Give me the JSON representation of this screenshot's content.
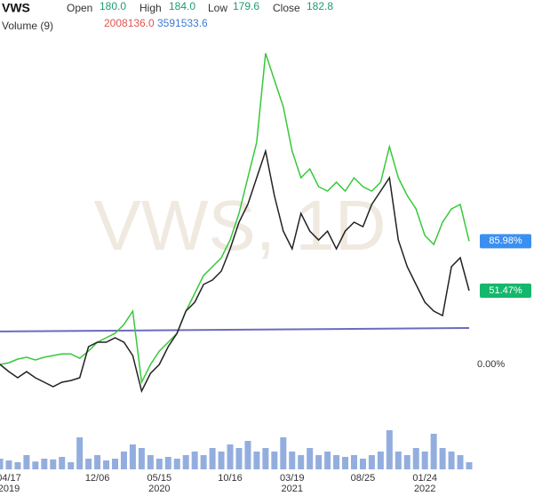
{
  "header": {
    "symbol": "VWS",
    "open_label": "Open",
    "open": "180.0",
    "high_label": "High",
    "high": "184.0",
    "low_label": "Low",
    "low": "179.6",
    "close_label": "Close",
    "close": "182.8",
    "volume_label": "Volume (9)",
    "volume": "2008136.0",
    "volume_ma": "3591533.6"
  },
  "chart_data": {
    "type": "line",
    "watermark": "VWS, 1D",
    "categories": [
      null,
      "04/17",
      null,
      null,
      null,
      null,
      null,
      null,
      null,
      null,
      null,
      "12/06",
      null,
      null,
      null,
      null,
      null,
      null,
      "05/15",
      null,
      null,
      null,
      null,
      null,
      null,
      null,
      "10/16",
      null,
      null,
      null,
      null,
      null,
      null,
      "03/19",
      null,
      null,
      null,
      null,
      null,
      null,
      null,
      "08/25",
      null,
      null,
      null,
      null,
      null,
      null,
      "01/24",
      null,
      null,
      null,
      null,
      null
    ],
    "years": [
      null,
      "2019",
      null,
      null,
      null,
      null,
      null,
      null,
      null,
      null,
      null,
      null,
      null,
      null,
      null,
      null,
      null,
      null,
      "2020",
      null,
      null,
      null,
      null,
      null,
      null,
      null,
      null,
      null,
      null,
      null,
      null,
      null,
      null,
      "2021",
      null,
      null,
      null,
      null,
      null,
      null,
      null,
      null,
      null,
      null,
      null,
      null,
      null,
      null,
      "2022",
      null,
      null,
      null,
      null,
      null
    ],
    "series": [
      {
        "color": "#36c93a",
        "last_label": "85.98%",
        "label_color": "#3b8ff0",
        "values": [
          0,
          1.2,
          3.7,
          5,
          3.1,
          5,
          6.2,
          7.4,
          7.4,
          4.3,
          9.3,
          15.5,
          18.6,
          21.7,
          27.9,
          37.2,
          -12.4,
          0,
          9.3,
          15.5,
          21.7,
          37.2,
          49.6,
          62,
          68.2,
          74.4,
          86.8,
          105.4,
          130.2,
          155,
          217,
          198.4,
          179.8,
          148.8,
          130.2,
          136.4,
          124,
          120.9,
          127.1,
          120.9,
          130.2,
          124,
          120.9,
          127.1,
          151.9,
          130.2,
          117.8,
          108.5,
          89.9,
          83.7,
          99.2,
          108.5,
          111.6,
          85.98
        ]
      },
      {
        "color": "#222222",
        "last_label": "51.47%",
        "label_color": "#14b86c",
        "values": [
          0,
          -5,
          -9.3,
          -5,
          -9.3,
          -12.4,
          -15.5,
          -12.4,
          -11.2,
          -9.3,
          12.4,
          15.5,
          15.5,
          18.6,
          15.5,
          6.2,
          -18.6,
          -6.2,
          0,
          12.4,
          21.7,
          37.2,
          43.4,
          55.8,
          58.9,
          65.1,
          80.6,
          99.2,
          111.6,
          130.2,
          148.8,
          117.8,
          93,
          80.6,
          105.4,
          93,
          86.8,
          93,
          80.6,
          93,
          99.2,
          96.1,
          111.6,
          120.9,
          130.2,
          86.8,
          68.2,
          55.8,
          43.4,
          37.2,
          34.1,
          68.2,
          74.4,
          51.47
        ]
      }
    ],
    "trendline": [
      23,
      25.4
    ],
    "trendline_color": "#6b6bc0",
    "ylim": [
      -37.2,
      254.2
    ],
    "yticks": [
      {
        "value": 0,
        "label": "0.00%"
      }
    ],
    "volume": [
      3000000,
      2500000,
      2000000,
      4000000,
      2200000,
      3000000,
      2800000,
      3500000,
      2000000,
      9000000,
      3000000,
      4000000,
      2500000,
      3000000,
      5000000,
      7000000,
      6000000,
      4000000,
      3000000,
      3500000,
      3000000,
      4000000,
      5000000,
      4000000,
      6000000,
      5000000,
      7000000,
      6000000,
      8000000,
      5000000,
      6000000,
      5000000,
      9000000,
      5000000,
      4000000,
      6000000,
      4000000,
      5000000,
      4000000,
      3500000,
      4000000,
      3000000,
      4000000,
      5000000,
      11000000,
      5000000,
      4000000,
      6000000,
      5000000,
      10000000,
      6000000,
      5000000,
      4000000,
      2000000
    ],
    "volume_ylim": [
      0,
      12000000
    ],
    "volume_color": "#6f93d3"
  }
}
